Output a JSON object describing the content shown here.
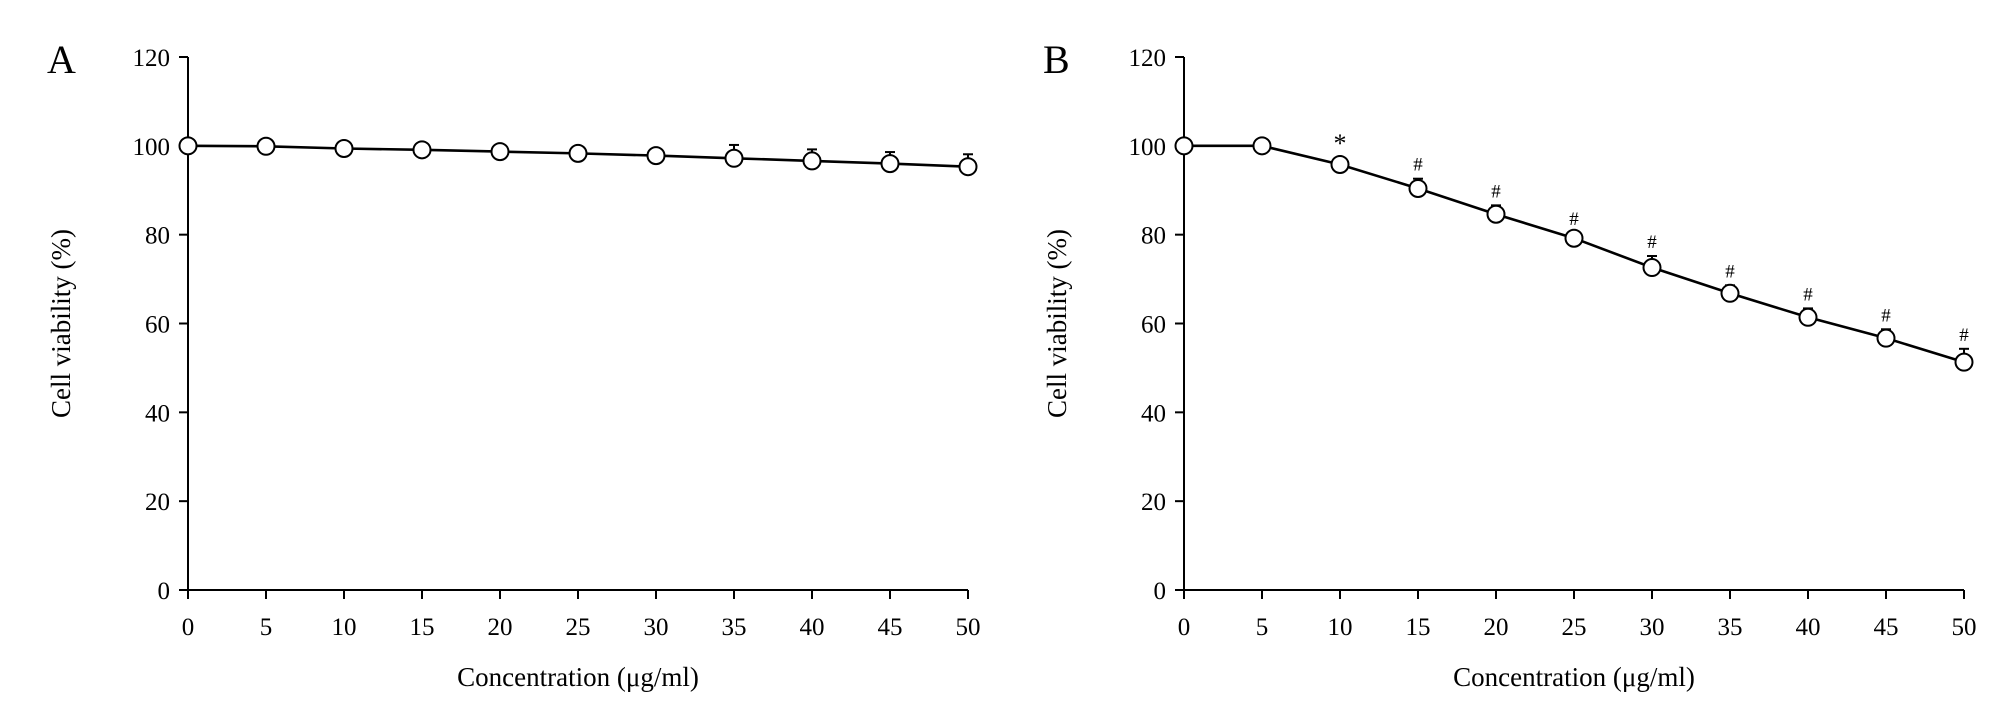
{
  "chart_data": [
    {
      "panel_label": "A",
      "type": "line",
      "xlabel": "Concentration (μg/ml)",
      "ylabel": "Cell viability (%)",
      "xlim": [
        0,
        50
      ],
      "ylim": [
        0,
        120
      ],
      "x_ticks": [
        0,
        5,
        10,
        15,
        20,
        25,
        30,
        35,
        40,
        45,
        50
      ],
      "y_ticks": [
        0,
        20,
        40,
        60,
        80,
        100,
        120
      ],
      "grid": false,
      "series": [
        {
          "marker": "open-circle",
          "x": [
            0,
            5,
            10,
            15,
            20,
            25,
            30,
            35,
            40,
            45,
            50
          ],
          "y": [
            100,
            99.9,
            99.4,
            99.1,
            98.7,
            98.3,
            97.8,
            97.2,
            96.6,
            96.0,
            95.3
          ],
          "error": [
            0.5,
            0.8,
            1.0,
            1.0,
            1.2,
            1.3,
            1.4,
            3.0,
            2.6,
            2.6,
            2.8
          ],
          "annotations": [
            "",
            "",
            "",
            "",
            "",
            "",
            "",
            "",
            "",
            "",
            ""
          ]
        }
      ]
    },
    {
      "panel_label": "B",
      "type": "line",
      "xlabel": "Concentration (μg/ml)",
      "ylabel": "Cell viability (%)",
      "xlim": [
        0,
        50
      ],
      "ylim": [
        0,
        120
      ],
      "x_ticks": [
        0,
        5,
        10,
        15,
        20,
        25,
        30,
        35,
        40,
        45,
        50
      ],
      "y_ticks": [
        0,
        20,
        40,
        60,
        80,
        100,
        120
      ],
      "grid": false,
      "series": [
        {
          "marker": "open-circle",
          "x": [
            0,
            5,
            10,
            15,
            20,
            25,
            30,
            35,
            40,
            45,
            50
          ],
          "y": [
            100,
            100,
            95.8,
            90.4,
            84.6,
            79.2,
            72.6,
            66.8,
            61.4,
            56.7,
            51.3
          ],
          "error": [
            0.5,
            0.5,
            1.0,
            2.2,
            2.0,
            1.2,
            2.6,
            1.8,
            2.0,
            2.0,
            3.0
          ],
          "annotations": [
            "",
            "",
            "*",
            "#",
            "#",
            "#",
            "#",
            "#",
            "#",
            "#",
            "#"
          ]
        }
      ]
    }
  ]
}
